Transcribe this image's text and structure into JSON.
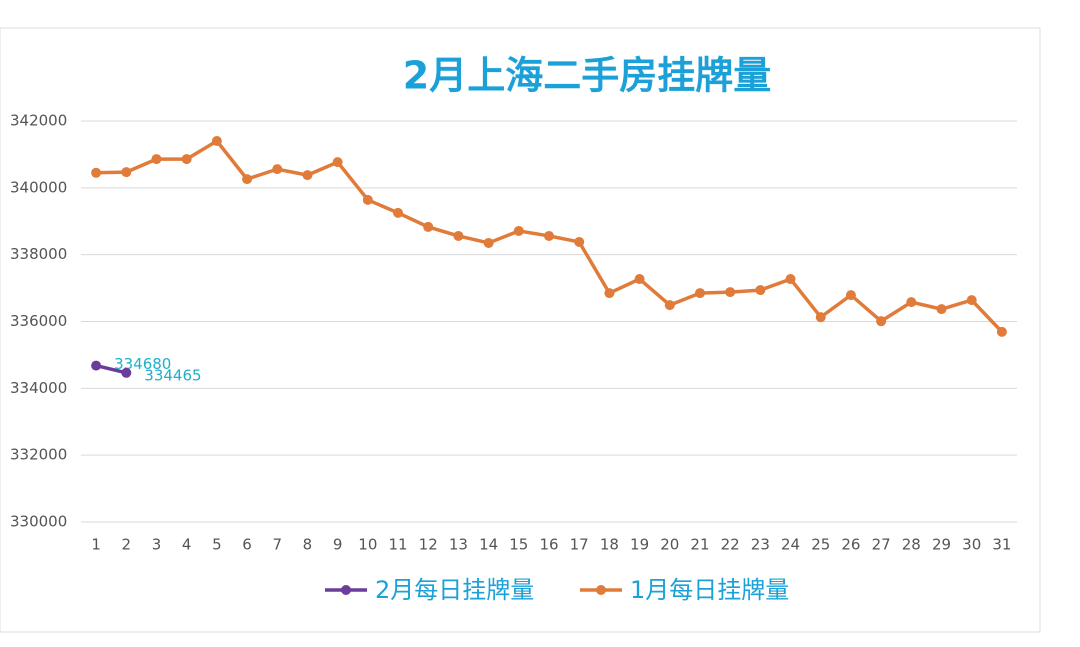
{
  "chart_data": {
    "type": "line",
    "title": "2月上海二手房挂牌量",
    "categories": [
      "1",
      "2",
      "3",
      "4",
      "5",
      "6",
      "7",
      "8",
      "9",
      "10",
      "11",
      "12",
      "13",
      "14",
      "15",
      "16",
      "17",
      "18",
      "19",
      "20",
      "21",
      "22",
      "23",
      "24",
      "25",
      "26",
      "27",
      "28",
      "29",
      "30",
      "31"
    ],
    "series": [
      {
        "name": "2月每日挂牌量",
        "color": "#6a3d9a",
        "values": [
          334680,
          334465,
          null,
          null,
          null,
          null,
          null,
          null,
          null,
          null,
          null,
          null,
          null,
          null,
          null,
          null,
          null,
          null,
          null,
          null,
          null,
          null,
          null,
          null,
          null,
          null,
          null,
          null,
          null,
          null,
          null
        ]
      },
      {
        "name": "1月每日挂牌量",
        "color": "#e07b39",
        "values": [
          340450,
          340470,
          340860,
          340860,
          341400,
          340260,
          340560,
          340380,
          340770,
          339640,
          339250,
          338830,
          338560,
          338350,
          338710,
          338560,
          338380,
          336850,
          337270,
          336490,
          336850,
          336880,
          336940,
          337270,
          336130,
          336790,
          336010,
          336580,
          336370,
          336640,
          335690
        ]
      }
    ],
    "ylim": [
      330000,
      342000
    ],
    "yticks": [
      330000,
      332000,
      334000,
      336000,
      338000,
      340000,
      342000
    ],
    "grid": true,
    "legend": "bottom"
  }
}
